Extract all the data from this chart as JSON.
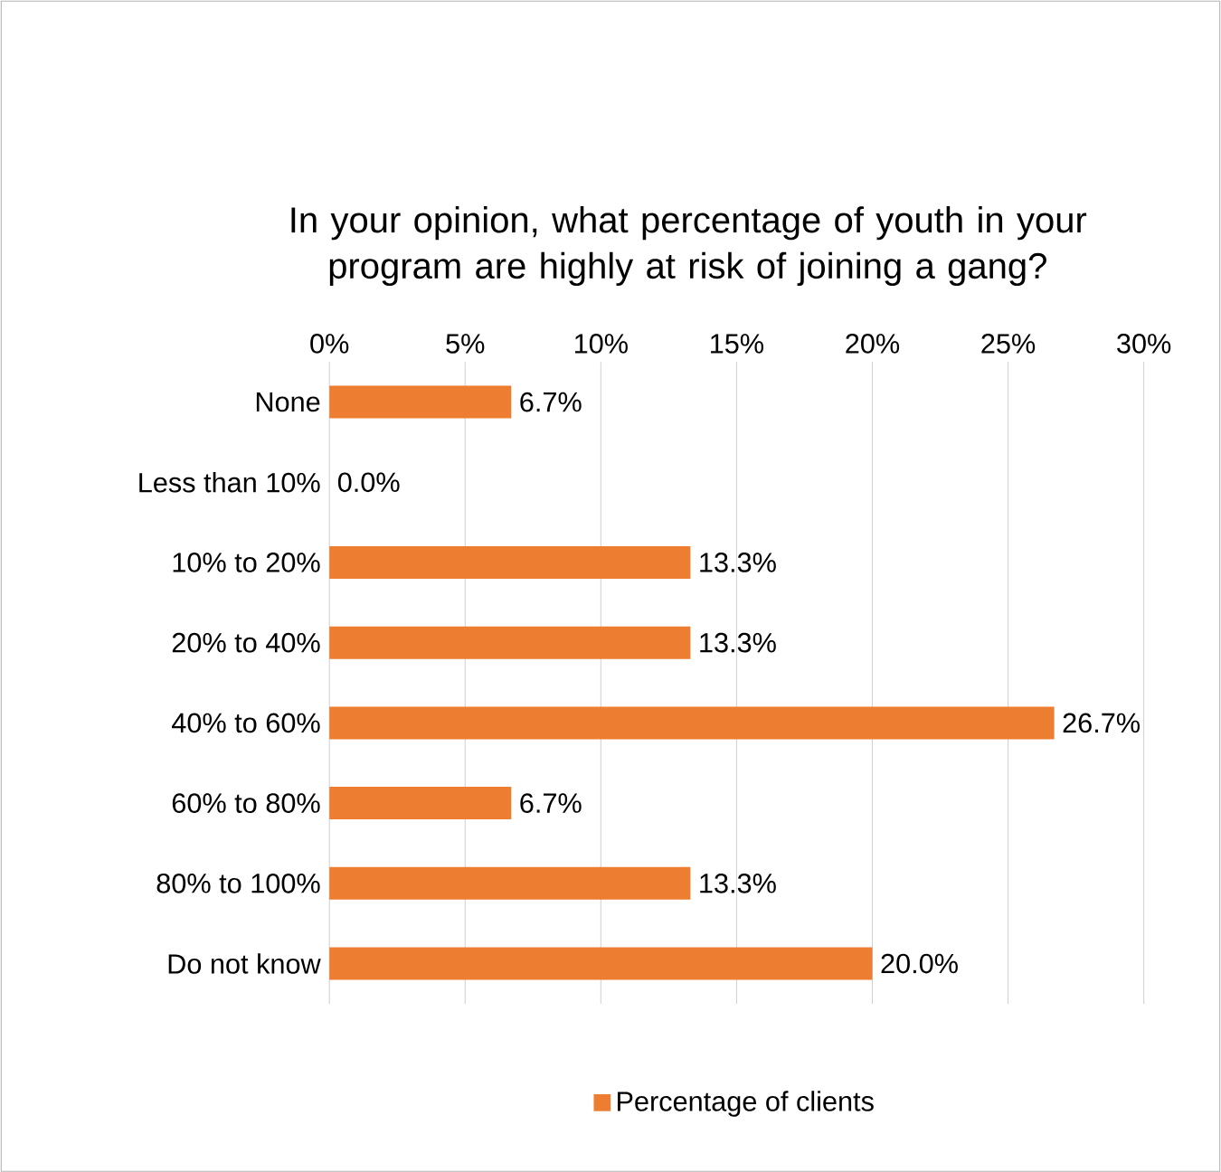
{
  "chart_data": {
    "type": "bar",
    "orientation": "horizontal",
    "title": "In your opinion, what percentage of youth in your program are highly at risk of joining a gang?",
    "categories": [
      "None",
      "Less than 10%",
      "10% to 20%",
      "20% to 40%",
      "40% to 60%",
      "60% to 80%",
      "80% to 100%",
      "Do not know"
    ],
    "series": [
      {
        "name": "Percentage of clients",
        "color": "#ed7d31",
        "values": [
          6.7,
          0.0,
          13.3,
          13.3,
          26.7,
          6.7,
          13.3,
          20.0
        ],
        "value_labels": [
          "6.7%",
          "0.0%",
          "13.3%",
          "13.3%",
          "26.7%",
          "6.7%",
          "13.3%",
          "20.0%"
        ]
      }
    ],
    "xlim": [
      0,
      30
    ],
    "xticks": [
      {
        "value": 0,
        "label": "0%"
      },
      {
        "value": 5,
        "label": "5%"
      },
      {
        "value": 10,
        "label": "10%"
      },
      {
        "value": 15,
        "label": "15%"
      },
      {
        "value": 20,
        "label": "20%"
      },
      {
        "value": 25,
        "label": "25%"
      },
      {
        "value": 30,
        "label": "30%"
      }
    ],
    "grid": "x",
    "legend": "bottom"
  }
}
